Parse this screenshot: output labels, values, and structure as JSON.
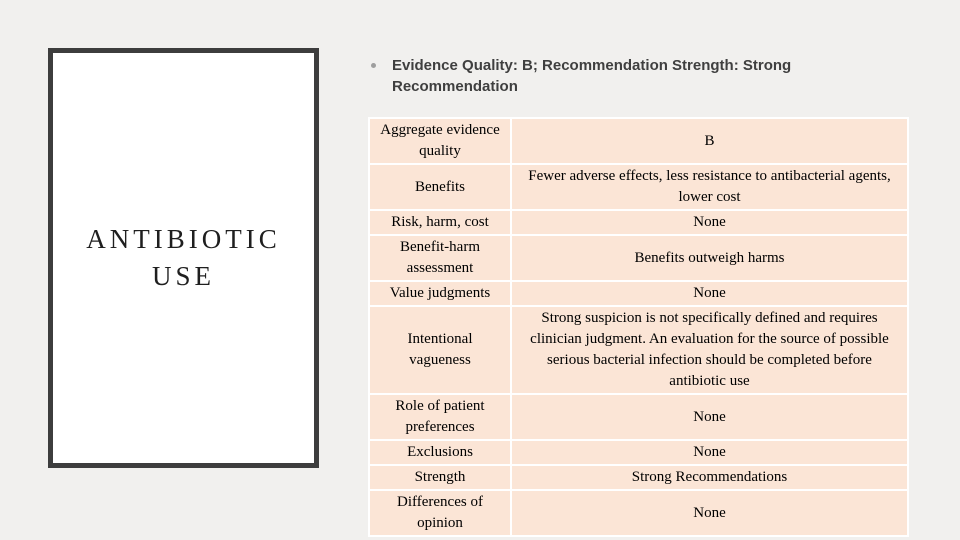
{
  "slide": {
    "background_color": "#f1f0ee",
    "panel": {
      "title": "ANTIBIOTIC USE",
      "border_color": "#3d3d3d"
    },
    "header": {
      "bullet_text": "Evidence Quality: B; Recommendation Strength: Strong Recommendation"
    },
    "table": {
      "cell_color": "#fbe5d6",
      "rows": [
        {
          "label": "Aggregate evidence quality",
          "value": "B"
        },
        {
          "label": "Benefits",
          "value": "Fewer adverse effects, less resistance to antibacterial agents, lower cost"
        },
        {
          "label": "Risk, harm, cost",
          "value": "None"
        },
        {
          "label": "Benefit-harm assessment",
          "value": "Benefits outweigh harms"
        },
        {
          "label": "Value judgments",
          "value": "None"
        },
        {
          "label": "Intentional vagueness",
          "value": "Strong suspicion is not specifically defined and requires clinician judgment. An evaluation for the source of possible serious bacterial infection should be completed before antibiotic use"
        },
        {
          "label": "Role of patient preferences",
          "value": "None"
        },
        {
          "label": "Exclusions",
          "value": "None"
        },
        {
          "label": "Strength",
          "value": "Strong Recommendations"
        },
        {
          "label": "Differences of opinion",
          "value": "None"
        }
      ]
    }
  }
}
